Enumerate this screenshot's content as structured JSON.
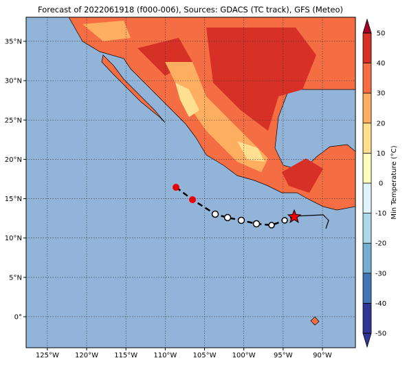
{
  "title": "Forecast of 2022061918 (f000-006), Sources: GDACS (TC track), GFS (Meteo)",
  "map": {
    "xlim": [
      -127.7,
      -85.8
    ],
    "ylim": [
      -3.94,
      38.06
    ],
    "xticks": [
      {
        "value": -125,
        "label": "125°W"
      },
      {
        "value": -120,
        "label": "120°W"
      },
      {
        "value": -115,
        "label": "115°W"
      },
      {
        "value": -110,
        "label": "110°W"
      },
      {
        "value": -105,
        "label": "105°W"
      },
      {
        "value": -100,
        "label": "100°W"
      },
      {
        "value": -95,
        "label": "95°W"
      },
      {
        "value": -90,
        "label": "90°W"
      }
    ],
    "yticks": [
      {
        "value": 0,
        "label": "0°"
      },
      {
        "value": 5,
        "label": "5°N"
      },
      {
        "value": 10,
        "label": "10°N"
      },
      {
        "value": 15,
        "label": "15°N"
      },
      {
        "value": 20,
        "label": "20°N"
      },
      {
        "value": 25,
        "label": "25°N"
      },
      {
        "value": 30,
        "label": "30°N"
      },
      {
        "value": 35,
        "label": "35°N"
      }
    ],
    "grid": true
  },
  "colorbar": {
    "label": "Min Temperature (°C)",
    "lim": [
      -50,
      50
    ],
    "ticks": [
      -50,
      -40,
      -30,
      -20,
      -10,
      0,
      10,
      20,
      30,
      40,
      50
    ],
    "colors": [
      "#313695",
      "#4575b4",
      "#74add1",
      "#abd9e9",
      "#e0f3f8",
      "#ffffbf",
      "#fee090",
      "#fdae61",
      "#f46d43",
      "#d73027",
      "#a50026"
    ]
  }
}
